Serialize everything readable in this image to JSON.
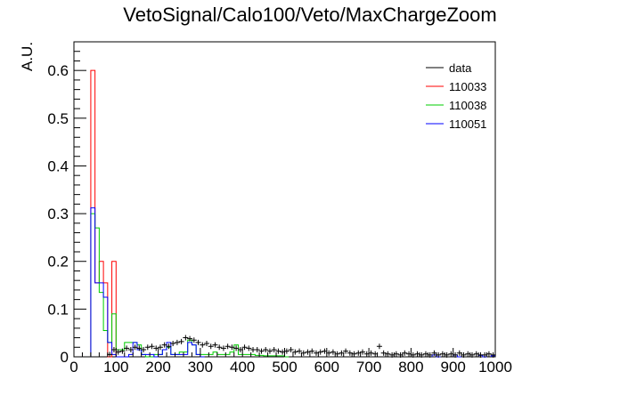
{
  "chart_data": {
    "type": "histogram",
    "title": "VetoSignal/Calo100/Veto/MaxChargeZoom",
    "xlabel": "",
    "ylabel": "A.U.",
    "xlim": [
      0,
      1000
    ],
    "ylim": [
      0,
      0.66
    ],
    "xticks": [
      "0",
      "100",
      "200",
      "300",
      "400",
      "500",
      "600",
      "700",
      "800",
      "900",
      "1000"
    ],
    "yticks": [
      "0",
      "0.1",
      "0.2",
      "0.3",
      "0.4",
      "0.5",
      "0.6"
    ],
    "bin_width": 10,
    "legend_position": "top-right",
    "series": [
      {
        "name": "data",
        "color": "#000000",
        "style": "markers",
        "points": [
          [
            85,
            0.005
          ],
          [
            95,
            0.015
          ],
          [
            105,
            0.01
          ],
          [
            115,
            0.012
          ],
          [
            125,
            0.018
          ],
          [
            135,
            0.015
          ],
          [
            145,
            0.02
          ],
          [
            155,
            0.018
          ],
          [
            165,
            0.015
          ],
          [
            175,
            0.02
          ],
          [
            185,
            0.022
          ],
          [
            195,
            0.018
          ],
          [
            205,
            0.02
          ],
          [
            215,
            0.025
          ],
          [
            225,
            0.022
          ],
          [
            235,
            0.028
          ],
          [
            245,
            0.03
          ],
          [
            255,
            0.032
          ],
          [
            265,
            0.04
          ],
          [
            275,
            0.038
          ],
          [
            285,
            0.035
          ],
          [
            295,
            0.03
          ],
          [
            305,
            0.025
          ],
          [
            315,
            0.028
          ],
          [
            325,
            0.022
          ],
          [
            335,
            0.025
          ],
          [
            345,
            0.02
          ],
          [
            355,
            0.018
          ],
          [
            365,
            0.022
          ],
          [
            375,
            0.02
          ],
          [
            385,
            0.018
          ],
          [
            395,
            0.015
          ],
          [
            405,
            0.02
          ],
          [
            415,
            0.018
          ],
          [
            425,
            0.015
          ],
          [
            435,
            0.015
          ],
          [
            445,
            0.012
          ],
          [
            455,
            0.015
          ],
          [
            465,
            0.012
          ],
          [
            475,
            0.015
          ],
          [
            485,
            0.012
          ],
          [
            495,
            0.01
          ],
          [
            505,
            0.012
          ],
          [
            515,
            0.015
          ],
          [
            525,
            0.01
          ],
          [
            535,
            0.012
          ],
          [
            545,
            0.008
          ],
          [
            555,
            0.01
          ],
          [
            565,
            0.012
          ],
          [
            575,
            0.008
          ],
          [
            585,
            0.01
          ],
          [
            595,
            0.012
          ],
          [
            605,
            0.008
          ],
          [
            615,
            0.01
          ],
          [
            625,
            0.006
          ],
          [
            635,
            0.008
          ],
          [
            645,
            0.012
          ],
          [
            655,
            0.008
          ],
          [
            665,
            0.006
          ],
          [
            675,
            0.008
          ],
          [
            685,
            0.01
          ],
          [
            695,
            0.006
          ],
          [
            705,
            0.008
          ],
          [
            715,
            0.006
          ],
          [
            725,
            0.022
          ],
          [
            735,
            0.008
          ],
          [
            745,
            0.006
          ],
          [
            755,
            0.004
          ],
          [
            765,
            0.006
          ],
          [
            775,
            0.004
          ],
          [
            785,
            0.008
          ],
          [
            795,
            0.006
          ],
          [
            805,
            0.004
          ],
          [
            815,
            0.006
          ],
          [
            825,
            0.004
          ],
          [
            835,
            0.006
          ],
          [
            845,
            0.004
          ],
          [
            855,
            0.008
          ],
          [
            865,
            0.004
          ],
          [
            875,
            0.006
          ],
          [
            885,
            0.004
          ],
          [
            895,
            0.006
          ],
          [
            905,
            0.004
          ],
          [
            915,
            0.008
          ],
          [
            925,
            0.004
          ],
          [
            935,
            0.006
          ],
          [
            945,
            0.004
          ],
          [
            955,
            0.006
          ],
          [
            965,
            0.004
          ],
          [
            975,
            0.004
          ],
          [
            985,
            0.006
          ],
          [
            995,
            0.004
          ]
        ]
      },
      {
        "name": "110033",
        "color": "#ff0000",
        "style": "histogram",
        "bins": [
          [
            40,
            50,
            0.6
          ],
          [
            50,
            60,
            0.155
          ],
          [
            60,
            70,
            0.2
          ],
          [
            70,
            80,
            0.155
          ],
          [
            80,
            90,
            0.0
          ],
          [
            90,
            100,
            0.2
          ]
        ]
      },
      {
        "name": "110038",
        "color": "#00cc00",
        "style": "histogram",
        "bins": [
          [
            40,
            50,
            0.3
          ],
          [
            50,
            60,
            0.27
          ],
          [
            60,
            70,
            0.135
          ],
          [
            70,
            80,
            0.055
          ],
          [
            80,
            90,
            0.03
          ],
          [
            90,
            100,
            0.09
          ],
          [
            100,
            110,
            0.015
          ],
          [
            110,
            120,
            0.015
          ],
          [
            120,
            130,
            0.03
          ],
          [
            130,
            140,
            0.03
          ],
          [
            140,
            150,
            0.03
          ],
          [
            150,
            160,
            0.025
          ],
          [
            160,
            170,
            0.005
          ],
          [
            170,
            180,
            0.0
          ],
          [
            180,
            190,
            0.0
          ],
          [
            190,
            200,
            0.005
          ],
          [
            200,
            210,
            0.005
          ],
          [
            210,
            220,
            0.015
          ],
          [
            220,
            230,
            0.02
          ],
          [
            230,
            240,
            0.005
          ],
          [
            240,
            250,
            0.005
          ],
          [
            250,
            260,
            0.01
          ],
          [
            260,
            270,
            0.01
          ],
          [
            270,
            280,
            0.035
          ],
          [
            280,
            290,
            0.025
          ],
          [
            290,
            300,
            0.005
          ],
          [
            300,
            310,
            0.005
          ],
          [
            310,
            320,
            0.005
          ],
          [
            320,
            330,
            0.005
          ],
          [
            330,
            340,
            0.01
          ],
          [
            340,
            350,
            0.005
          ],
          [
            350,
            360,
            0.005
          ],
          [
            360,
            370,
            0.005
          ],
          [
            370,
            380,
            0.01
          ],
          [
            380,
            390,
            0.025
          ],
          [
            390,
            400,
            0.005
          ],
          [
            400,
            410,
            0.005
          ],
          [
            410,
            420,
            0.005
          ],
          [
            420,
            430,
            0.005
          ],
          [
            430,
            440,
            0.003
          ],
          [
            440,
            450,
            0.003
          ],
          [
            450,
            460,
            0.002
          ],
          [
            460,
            470,
            0.002
          ],
          [
            470,
            480,
            0.002
          ],
          [
            480,
            490,
            0.002
          ],
          [
            490,
            500,
            0.002
          ],
          [
            500,
            510,
            0.0
          ]
        ]
      },
      {
        "name": "110051",
        "color": "#0000ff",
        "style": "histogram",
        "bins": [
          [
            40,
            50,
            0.312
          ],
          [
            50,
            60,
            0.155
          ],
          [
            60,
            70,
            0.155
          ],
          [
            70,
            80,
            0.125
          ],
          [
            80,
            90,
            0.03
          ],
          [
            90,
            100,
            0.005
          ],
          [
            100,
            110,
            0.0
          ],
          [
            110,
            120,
            0.0
          ],
          [
            120,
            130,
            0.0
          ],
          [
            130,
            140,
            0.005
          ],
          [
            140,
            150,
            0.03
          ],
          [
            150,
            160,
            0.015
          ],
          [
            160,
            170,
            0.005
          ],
          [
            170,
            180,
            0.005
          ],
          [
            180,
            190,
            0.005
          ],
          [
            190,
            200,
            0.0
          ],
          [
            200,
            210,
            0.005
          ],
          [
            210,
            220,
            0.015
          ],
          [
            220,
            230,
            0.03
          ],
          [
            230,
            240,
            0.005
          ],
          [
            240,
            250,
            0.005
          ],
          [
            250,
            260,
            0.005
          ],
          [
            260,
            270,
            0.005
          ],
          [
            270,
            280,
            0.03
          ],
          [
            280,
            290,
            0.025
          ],
          [
            290,
            300,
            0.005
          ],
          [
            300,
            310,
            0.0
          ],
          [
            850,
            860,
            0.004
          ],
          [
            860,
            870,
            0.0
          ],
          [
            900,
            910,
            0.004
          ],
          [
            910,
            920,
            0.0
          ],
          [
            960,
            970,
            0.003
          ],
          [
            970,
            980,
            0.0
          ],
          [
            990,
            1000,
            0.002
          ]
        ]
      }
    ]
  }
}
